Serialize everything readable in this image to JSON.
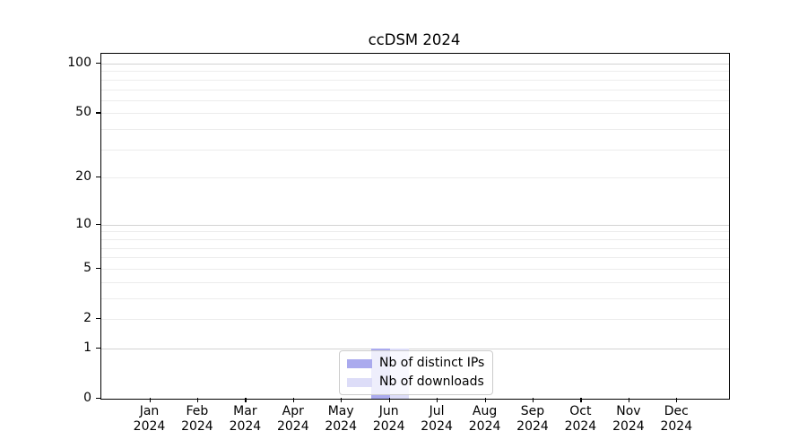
{
  "chart_data": {
    "type": "bar",
    "title": "ccDSM 2024",
    "x": {
      "categories": [
        "Jan",
        "Feb",
        "Mar",
        "Apr",
        "May",
        "Jun",
        "Jul",
        "Aug",
        "Sep",
        "Oct",
        "Nov",
        "Dec"
      ],
      "year": "2024"
    },
    "series": [
      {
        "name": "Nb of distinct IPs",
        "color": "#aaaaee",
        "values": [
          0,
          0,
          0,
          0,
          0,
          1,
          0,
          0,
          0,
          0,
          0,
          0
        ]
      },
      {
        "name": "Nb of downloads",
        "color": "#ddddf8",
        "values": [
          0,
          0,
          0,
          0,
          0,
          1,
          0,
          0,
          0,
          0,
          0,
          0
        ]
      }
    ],
    "y_axis": {
      "scale": "log10(1+x)",
      "ticks": [
        0,
        1,
        2,
        5,
        10,
        20,
        50,
        100
      ],
      "major_gridlines": [
        1,
        10,
        100
      ],
      "minor_gridlines": [
        2,
        3,
        4,
        5,
        6,
        7,
        8,
        9,
        20,
        30,
        40,
        50,
        60,
        70,
        80,
        90
      ],
      "ylim": [
        0,
        115
      ]
    },
    "legend": {
      "position": "lower center",
      "entries": [
        "Nb of distinct IPs",
        "Nb of downloads"
      ]
    }
  }
}
